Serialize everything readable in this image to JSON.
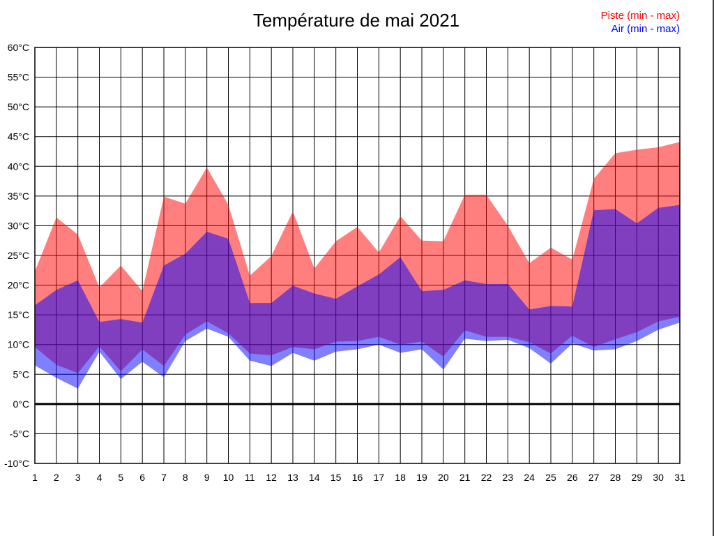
{
  "header": {
    "title": "Température de mai 2021"
  },
  "legend": [
    {
      "label": "Piste (min - max)",
      "color": "#ff0000"
    },
    {
      "label": "Air (min - max)",
      "color": "#0000ff"
    }
  ],
  "axes": {
    "x_ticks": [
      "1",
      "2",
      "3",
      "4",
      "5",
      "6",
      "7",
      "8",
      "9",
      "10",
      "11",
      "12",
      "13",
      "14",
      "15",
      "16",
      "17",
      "18",
      "19",
      "20",
      "21",
      "22",
      "23",
      "24",
      "25",
      "26",
      "27",
      "28",
      "29",
      "30",
      "31"
    ],
    "y_ticks": [
      "60°C",
      "55°C",
      "50°C",
      "45°C",
      "40°C",
      "35°C",
      "30°C",
      "25°C",
      "20°C",
      "15°C",
      "10°C",
      "5°C",
      "0°C",
      "-5°C",
      "-10°C"
    ]
  },
  "chart_data": {
    "type": "area",
    "title": "Température de mai 2021",
    "xlabel": "",
    "ylabel": "",
    "x": [
      1,
      2,
      3,
      4,
      5,
      6,
      7,
      8,
      9,
      10,
      11,
      12,
      13,
      14,
      15,
      16,
      17,
      18,
      19,
      20,
      21,
      22,
      23,
      24,
      25,
      26,
      27,
      28,
      29,
      30,
      31
    ],
    "ylim": [
      -10,
      60
    ],
    "y_tick_step": 5,
    "y_unit": "°C",
    "grid": true,
    "legend_position": "top-right",
    "zero_line": {
      "value": 0,
      "color": "#000000",
      "width": 3
    },
    "series": [
      {
        "name": "Piste (min - max)",
        "role": "min-max-band",
        "color": "#ff0000",
        "fill": "rgba(255,0,0,0.5)",
        "max": [
          22.3,
          31.4,
          28.5,
          19.6,
          23.3,
          19.0,
          34.9,
          33.7,
          39.8,
          33.5,
          21.6,
          24.9,
          32.4,
          22.8,
          27.4,
          29.8,
          25.5,
          31.6,
          27.5,
          27.4,
          35.2,
          35.2,
          30.0,
          23.7,
          26.3,
          24.3,
          37.9,
          42.2,
          42.8,
          43.2,
          44.1
        ],
        "min": [
          9.6,
          6.6,
          5.2,
          9.7,
          5.5,
          9.2,
          6.4,
          11.7,
          13.9,
          11.9,
          8.5,
          8.2,
          9.6,
          9.2,
          10.5,
          10.6,
          11.3,
          10.0,
          10.5,
          8.0,
          12.4,
          11.3,
          11.3,
          10.4,
          8.5,
          11.5,
          9.6,
          10.9,
          12.1,
          13.9,
          14.7
        ]
      },
      {
        "name": "Air (min - max)",
        "role": "min-max-band",
        "color": "#0000ff",
        "fill": "rgba(0,0,255,0.5)",
        "max": [
          16.6,
          19.2,
          20.8,
          13.8,
          14.3,
          13.7,
          23.3,
          25.3,
          29.0,
          27.8,
          17.0,
          17.0,
          19.9,
          18.6,
          17.7,
          19.8,
          21.8,
          24.7,
          19.0,
          19.2,
          20.8,
          20.2,
          20.2,
          15.9,
          16.5,
          16.4,
          32.6,
          32.8,
          30.4,
          33.0,
          33.5
        ],
        "min": [
          6.5,
          4.4,
          2.6,
          8.8,
          4.2,
          7.1,
          4.5,
          10.6,
          12.7,
          11.3,
          7.3,
          6.4,
          8.6,
          7.3,
          8.8,
          9.2,
          10.0,
          8.6,
          9.2,
          5.8,
          11.0,
          10.6,
          10.8,
          9.4,
          6.8,
          10.2,
          9.0,
          9.2,
          10.6,
          12.5,
          13.7
        ]
      }
    ]
  }
}
